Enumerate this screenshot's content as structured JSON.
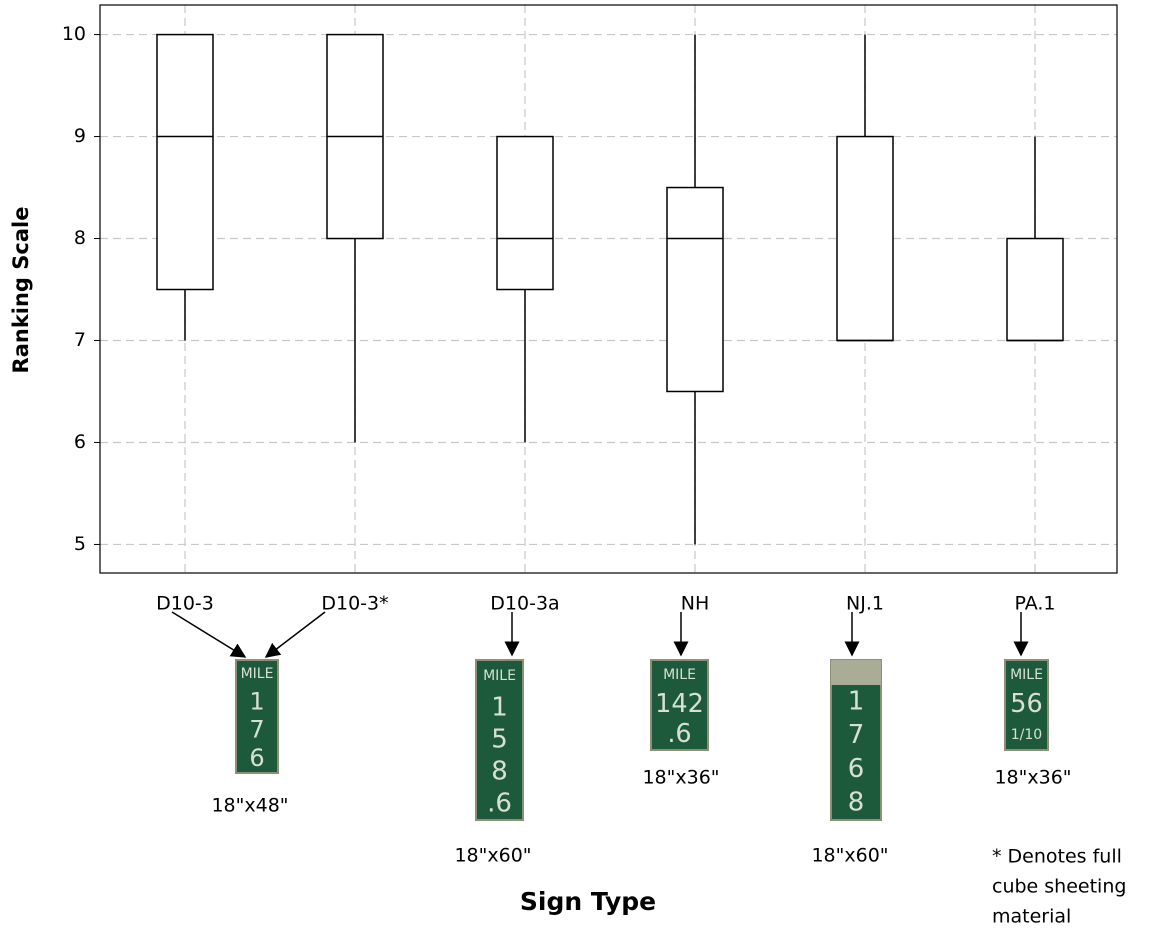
{
  "chart_data": {
    "type": "box",
    "x_label": "Sign Type",
    "y_label": "Ranking Scale",
    "categories": [
      "D10-3",
      "D10-3*",
      "D10-3a",
      "NH",
      "NJ.1",
      "PA.1"
    ],
    "boxes": [
      {
        "min": 7,
        "q1": 7.5,
        "median": 9,
        "q3": 10,
        "max": 10
      },
      {
        "min": 6,
        "q1": 8,
        "median": 9,
        "q3": 10,
        "max": 10
      },
      {
        "min": 6,
        "q1": 7.5,
        "median": 8,
        "q3": 9,
        "max": 9
      },
      {
        "min": 5,
        "q1": 6.5,
        "median": 8,
        "q3": 8.5,
        "max": 10
      },
      {
        "min": 7,
        "q1": 7,
        "median": 7,
        "q3": 9,
        "max": 10
      },
      {
        "min": 7,
        "q1": 7,
        "median": 7,
        "q3": 8,
        "max": 9
      }
    ],
    "ylim": [
      4.72,
      10.29
    ],
    "yticks": [
      5,
      6,
      7,
      8,
      9,
      10
    ],
    "grid": true,
    "signs": [
      {
        "lines": [
          "MILE",
          "1",
          "7",
          "6"
        ],
        "size": "18\"x48\""
      },
      {
        "lines": [
          "MILE",
          "1",
          "5",
          "8",
          ".6"
        ],
        "size": "18\"x60\""
      },
      {
        "lines": [
          "MILE",
          "142",
          ".6"
        ],
        "size": "18\"x36\""
      },
      {
        "lines": [
          "1",
          "7",
          "6",
          "8"
        ],
        "size": "18\"x60\""
      },
      {
        "lines": [
          "MILE",
          "56",
          "1/10"
        ],
        "size": "18\"x36\""
      }
    ],
    "footnote": [
      "* Denotes full",
      "cube sheeting",
      "material"
    ]
  }
}
